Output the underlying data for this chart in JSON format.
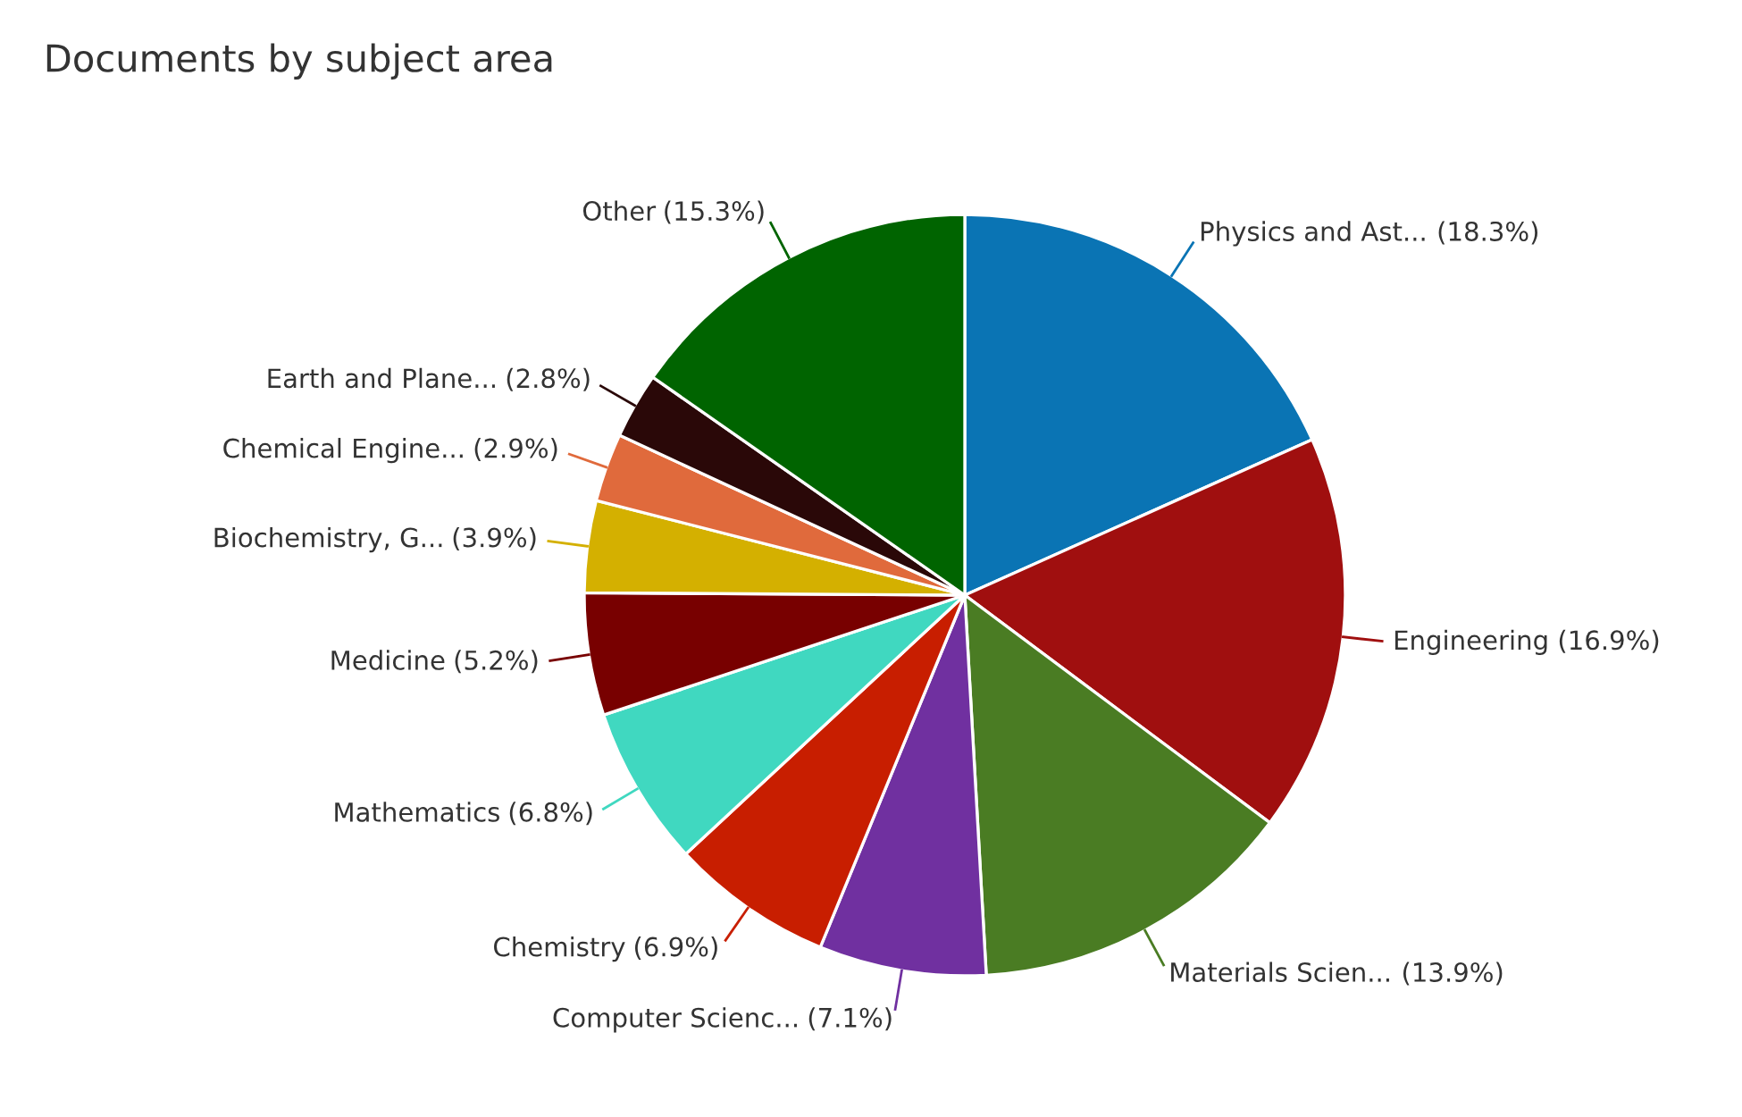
{
  "chart_data": {
    "type": "pie",
    "title": "Documents by subject area",
    "categories": [
      "Physics and Ast...",
      "Engineering",
      "Materials Scien...",
      "Computer Scienc...",
      "Chemistry",
      "Mathematics",
      "Medicine",
      "Biochemistry, G...",
      "Chemical Engine...",
      "Earth and Plane...",
      "Other"
    ],
    "values": [
      18.3,
      16.9,
      13.9,
      7.1,
      6.9,
      6.8,
      5.2,
      3.9,
      2.9,
      2.8,
      15.3
    ],
    "colors": [
      "#0a74b4",
      "#a00f0f",
      "#4a7c23",
      "#7030a0",
      "#c81e00",
      "#40d8c0",
      "#780000",
      "#d4b000",
      "#e06a3c",
      "#2a0808",
      "#006400"
    ],
    "value_labels": [
      "(18.3%)",
      "(16.9%)",
      "(13.9%)",
      "(7.1%)",
      "(6.9%)",
      "(6.8%)",
      "(5.2%)",
      "(3.9%)",
      "(2.9%)",
      "(2.8%)",
      "(15.3%)"
    ]
  }
}
